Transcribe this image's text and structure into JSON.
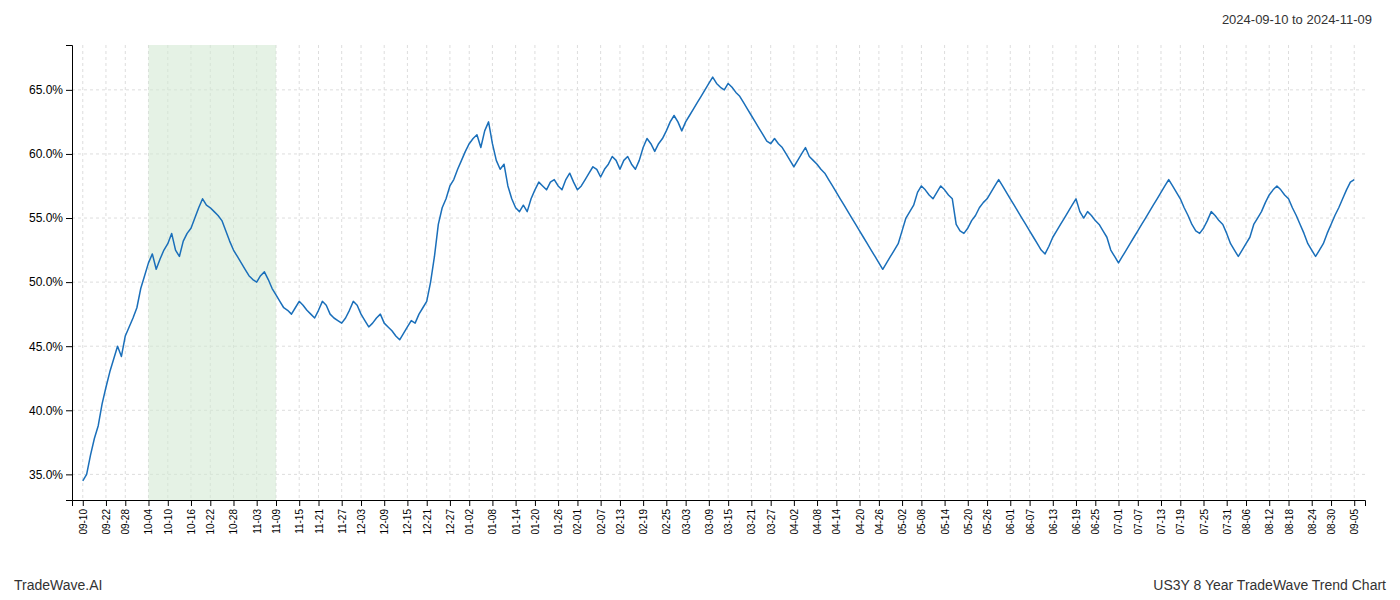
{
  "chart_data": {
    "type": "line",
    "title": "US3Y 8 Year TradeWave Trend Chart",
    "subtitle": "2024-09-10 to 2024-11-09",
    "annotations": [
      "TradeWave.AI"
    ],
    "color": "#1a6fba",
    "grid": true,
    "span": {
      "from": "10-04",
      "to": "11-09",
      "color": "#d4ead4"
    },
    "ylim": [
      33.0,
      68.5
    ],
    "yticks": [
      {
        "value": 35.0,
        "label": "35.0%"
      },
      {
        "value": 40.0,
        "label": "40.0%"
      },
      {
        "value": 45.0,
        "label": "45.0%"
      },
      {
        "value": 50.0,
        "label": "50.0%"
      },
      {
        "value": 55.0,
        "label": "55.0%"
      },
      {
        "value": 60.0,
        "label": "60.0%"
      },
      {
        "value": 65.0,
        "label": "65.0%"
      }
    ],
    "categories": [
      "09-10",
      null,
      null,
      null,
      null,
      null,
      "09-22",
      null,
      null,
      null,
      null,
      "09-28",
      null,
      null,
      null,
      null,
      null,
      "10-04",
      null,
      null,
      null,
      null,
      "10-10",
      null,
      null,
      null,
      null,
      null,
      "10-16",
      null,
      null,
      null,
      null,
      "10-22",
      null,
      null,
      null,
      null,
      null,
      "10-28",
      null,
      null,
      null,
      null,
      null,
      "11-03",
      null,
      null,
      null,
      null,
      "11-09",
      null,
      null,
      null,
      null,
      null,
      "11-15",
      null,
      null,
      null,
      null,
      "11-21",
      null,
      null,
      null,
      null,
      null,
      "11-27",
      null,
      null,
      null,
      null,
      "12-03",
      null,
      null,
      null,
      null,
      null,
      "12-09",
      null,
      null,
      null,
      null,
      null,
      "12-15",
      null,
      null,
      null,
      null,
      "12-21",
      null,
      null,
      null,
      null,
      null,
      "12-27",
      null,
      null,
      null,
      null,
      "01-02",
      null,
      null,
      null,
      null,
      null,
      "01-08",
      null,
      null,
      null,
      null,
      null,
      "01-14",
      null,
      null,
      null,
      null,
      "01-20",
      null,
      null,
      null,
      null,
      null,
      "01-26",
      null,
      null,
      null,
      null,
      "02-01",
      null,
      null,
      null,
      null,
      null,
      "02-07",
      null,
      null,
      null,
      null,
      "02-13",
      null,
      null,
      null,
      null,
      null,
      "02-19",
      null,
      null,
      null,
      null,
      null,
      "02-25",
      null,
      null,
      null,
      null,
      "03-03",
      null,
      null,
      null,
      null,
      null,
      "03-09",
      null,
      null,
      null,
      null,
      "03-15",
      null,
      null,
      null,
      null,
      null,
      "03-21",
      null,
      null,
      null,
      null,
      "03-27",
      null,
      null,
      null,
      null,
      null,
      "04-02",
      null,
      null,
      null,
      null,
      null,
      "04-08",
      null,
      null,
      null,
      null,
      "04-14",
      null,
      null,
      null,
      null,
      null,
      "04-20",
      null,
      null,
      null,
      null,
      "04-26",
      null,
      null,
      null,
      null,
      null,
      "05-02",
      null,
      null,
      null,
      null,
      "05-08",
      null,
      null,
      null,
      null,
      null,
      "05-14",
      null,
      null,
      null,
      null,
      null,
      "05-20",
      null,
      null,
      null,
      null,
      "05-26",
      null,
      null,
      null,
      null,
      null,
      "06-01",
      null,
      null,
      null,
      null,
      "06-07",
      null,
      null,
      null,
      null,
      null,
      "06-13",
      null,
      null,
      null,
      null,
      null,
      "06-19",
      null,
      null,
      null,
      null,
      "06-25",
      null,
      null,
      null,
      null,
      null,
      "07-01",
      null,
      null,
      null,
      null,
      "07-07",
      null,
      null,
      null,
      null,
      null,
      "07-13",
      null,
      null,
      null,
      null,
      "07-19",
      null,
      null,
      null,
      null,
      null,
      "07-25",
      null,
      null,
      null,
      null,
      null,
      "07-31",
      null,
      null,
      null,
      null,
      "08-06",
      null,
      null,
      null,
      null,
      null,
      "08-12",
      null,
      null,
      null,
      null,
      "08-18",
      null,
      null,
      null,
      null,
      null,
      "08-24",
      null,
      null,
      null,
      null,
      "08-30",
      null,
      null,
      null,
      null,
      null,
      "09-05"
    ],
    "values": [
      34.5,
      35.0,
      36.5,
      37.8,
      38.8,
      40.5,
      41.8,
      43.0,
      44.0,
      45.0,
      44.2,
      45.8,
      46.5,
      47.2,
      48.0,
      49.5,
      50.5,
      51.5,
      52.2,
      51.0,
      51.8,
      52.5,
      53.0,
      53.8,
      52.5,
      52.0,
      53.2,
      53.8,
      54.2,
      55.0,
      55.8,
      56.5,
      56.0,
      55.8,
      55.5,
      55.2,
      54.8,
      54.0,
      53.2,
      52.5,
      52.0,
      51.5,
      51.0,
      50.5,
      50.2,
      50.0,
      50.5,
      50.8,
      50.2,
      49.5,
      49.0,
      48.5,
      48.0,
      47.8,
      47.5,
      48.0,
      48.5,
      48.2,
      47.8,
      47.5,
      47.2,
      47.8,
      48.5,
      48.2,
      47.5,
      47.2,
      47.0,
      46.8,
      47.2,
      47.8,
      48.5,
      48.2,
      47.5,
      47.0,
      46.5,
      46.8,
      47.2,
      47.5,
      46.8,
      46.5,
      46.2,
      45.8,
      45.5,
      46.0,
      46.5,
      47.0,
      46.8,
      47.5,
      48.0,
      48.5,
      50.0,
      52.0,
      54.5,
      55.8,
      56.5,
      57.5,
      58.0,
      58.8,
      59.5,
      60.2,
      60.8,
      61.2,
      61.5,
      60.5,
      61.8,
      62.5,
      60.8,
      59.5,
      58.8,
      59.2,
      57.5,
      56.5,
      55.8,
      55.5,
      56.0,
      55.5,
      56.5,
      57.2,
      57.8,
      57.5,
      57.2,
      57.8,
      58.0,
      57.5,
      57.2,
      58.0,
      58.5,
      57.8,
      57.2,
      57.5,
      58.0,
      58.5,
      59.0,
      58.8,
      58.2,
      58.8,
      59.2,
      59.8,
      59.5,
      58.8,
      59.5,
      59.8,
      59.2,
      58.8,
      59.5,
      60.5,
      61.2,
      60.8,
      60.2,
      60.8,
      61.2,
      61.8,
      62.5,
      63.0,
      62.5,
      61.8,
      62.5,
      63.0,
      63.5,
      64.0,
      64.5,
      65.0,
      65.5,
      66.0,
      65.5,
      65.2,
      65.0,
      65.5,
      65.2,
      64.8,
      64.5,
      64.0,
      63.5,
      63.0,
      62.5,
      62.0,
      61.5,
      61.0,
      60.8,
      61.2,
      60.8,
      60.5,
      60.0,
      59.5,
      59.0,
      59.5,
      60.0,
      60.5,
      59.8,
      59.5,
      59.2,
      58.8,
      58.5,
      58.0,
      57.5,
      57.0,
      56.5,
      56.0,
      55.5,
      55.0,
      54.5,
      54.0,
      53.5,
      53.0,
      52.5,
      52.0,
      51.5,
      51.0,
      51.5,
      52.0,
      52.5,
      53.0,
      54.0,
      55.0,
      55.5,
      56.0,
      57.0,
      57.5,
      57.2,
      56.8,
      56.5,
      57.0,
      57.5,
      57.2,
      56.8,
      56.5,
      54.5,
      54.0,
      53.8,
      54.2,
      54.8,
      55.2,
      55.8,
      56.2,
      56.5,
      57.0,
      57.5,
      58.0,
      57.5,
      57.0,
      56.5,
      56.0,
      55.5,
      55.0,
      54.5,
      54.0,
      53.5,
      53.0,
      52.5,
      52.2,
      52.8,
      53.5,
      54.0,
      54.5,
      55.0,
      55.5,
      56.0,
      56.5,
      55.5,
      55.0,
      55.5,
      55.2,
      54.8,
      54.5,
      54.0,
      53.5,
      52.5,
      52.0,
      51.5,
      52.0,
      52.5,
      53.0,
      53.5,
      54.0,
      54.5,
      55.0,
      55.5,
      56.0,
      56.5,
      57.0,
      57.5,
      58.0,
      57.5,
      57.0,
      56.5,
      55.8,
      55.2,
      54.5,
      54.0,
      53.8,
      54.2,
      54.8,
      55.5,
      55.2,
      54.8,
      54.5,
      53.8,
      53.0,
      52.5,
      52.0,
      52.5,
      53.0,
      53.5,
      54.5,
      55.0,
      55.5,
      56.2,
      56.8,
      57.2,
      57.5,
      57.2,
      56.8,
      56.5,
      55.8,
      55.2,
      54.5,
      53.8,
      53.0,
      52.5,
      52.0,
      52.5,
      53.0,
      53.8,
      54.5,
      55.2,
      55.8,
      56.5,
      57.2,
      57.8,
      58.0
    ]
  }
}
